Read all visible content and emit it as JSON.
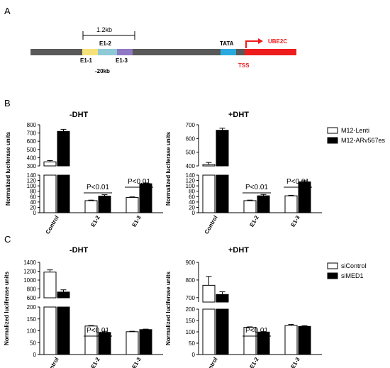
{
  "panel_labels": [
    "A",
    "B",
    "C"
  ],
  "schematic": {
    "scale_label": "1.2kb",
    "enhancers": [
      "E1-1",
      "E1-2",
      "E1-3"
    ],
    "distance_label": "-20kb",
    "tata_label": "TATA",
    "gene_label": "UBE2C",
    "tss_label": "TSS",
    "colors": {
      "line": "#595959",
      "e1_1": "#f6e27a",
      "e1_2": "#8ec9d6",
      "e1_3": "#8e79c4",
      "tata": "#29a9e0",
      "gene": "#ee1c1c"
    }
  },
  "chart_data": [
    {
      "type": "bar",
      "panel": "B",
      "title": "-DHT",
      "ylabel": "Normalized luciferase units",
      "categories": [
        "Control",
        "E1-2",
        "E1-3"
      ],
      "series": [
        {
          "name": "M12-Lenti",
          "values": [
            350,
            45,
            57
          ],
          "errors": [
            15,
            2,
            2
          ]
        },
        {
          "name": "M12-ARv567es",
          "values": [
            720,
            62,
            108
          ],
          "errors": [
            25,
            5,
            3
          ]
        }
      ],
      "y_break": {
        "lower": [
          0,
          140
        ],
        "upper": [
          300,
          800
        ]
      },
      "lower_ticks": [
        0,
        20,
        40,
        60,
        80,
        100,
        120,
        140
      ],
      "upper_ticks": [
        300,
        400,
        500,
        600,
        700,
        800
      ],
      "annotations": [
        {
          "text": "P<0.01",
          "category": "E1-2"
        },
        {
          "text": "P<0.01",
          "category": "E1-3"
        }
      ]
    },
    {
      "type": "bar",
      "panel": "B",
      "title": "+DHT",
      "ylabel": "Normalized luciferase units",
      "categories": [
        "Control",
        "E1-2",
        "E1-3"
      ],
      "series": [
        {
          "name": "M12-Lenti",
          "values": [
            410,
            45,
            63
          ],
          "errors": [
            15,
            2,
            2
          ]
        },
        {
          "name": "M12-ARv567es",
          "values": [
            660,
            63,
            115
          ],
          "errors": [
            15,
            5,
            4
          ]
        }
      ],
      "y_break": {
        "lower": [
          0,
          140
        ],
        "upper": [
          400,
          700
        ]
      },
      "lower_ticks": [
        0,
        20,
        40,
        60,
        80,
        100,
        120,
        140
      ],
      "upper_ticks": [
        400,
        500,
        600,
        700
      ],
      "annotations": [
        {
          "text": "P<0.01",
          "category": "E1-2"
        },
        {
          "text": "P<0.01",
          "category": "E1-3"
        }
      ]
    },
    {
      "type": "bar",
      "panel": "C",
      "title": "-DHT",
      "ylabel": "Normalized luciferase units",
      "categories": [
        "Control",
        "E1-2",
        "E1-3"
      ],
      "series": [
        {
          "name": "siControl",
          "values": [
            1180,
            120,
            96
          ],
          "errors": [
            50,
            2,
            2
          ]
        },
        {
          "name": "siMED1",
          "values": [
            730,
            93,
            105
          ],
          "errors": [
            50,
            5,
            2
          ]
        }
      ],
      "y_break": {
        "lower": [
          0,
          200
        ],
        "upper": [
          600,
          1400
        ]
      },
      "lower_ticks": [
        0,
        50,
        100,
        150,
        200
      ],
      "upper_ticks": [
        600,
        800,
        1000,
        1200,
        1400
      ],
      "annotations": [
        {
          "text": "P<0.01",
          "category": "E1-2"
        }
      ]
    },
    {
      "type": "bar",
      "panel": "C",
      "title": "+DHT",
      "ylabel": "Normalized luciferase units",
      "categories": [
        "Control",
        "E1-2",
        "E1-3"
      ],
      "series": [
        {
          "name": "siControl",
          "values": [
            770,
            120,
            128
          ],
          "errors": [
            50,
            2,
            5
          ]
        },
        {
          "name": "siMED1",
          "values": [
            718,
            99,
            124
          ],
          "errors": [
            15,
            2,
            3
          ]
        }
      ],
      "y_break": {
        "lower": [
          0,
          200
        ],
        "upper": [
          675,
          900
        ]
      },
      "lower_ticks": [
        0,
        50,
        100,
        150,
        200
      ],
      "upper_ticks": [
        700,
        800,
        900
      ],
      "annotations": [
        {
          "text": "P<0.01",
          "category": "E1-2"
        }
      ]
    }
  ],
  "legends": [
    {
      "panel": "B",
      "entries": [
        {
          "label": "M12-Lenti",
          "color": "#ffffff"
        },
        {
          "label": "M12-ARv567es",
          "color": "#000000"
        }
      ]
    },
    {
      "panel": "C",
      "entries": [
        {
          "label": "siControl",
          "color": "#ffffff"
        },
        {
          "label": "siMED1",
          "color": "#000000"
        }
      ]
    }
  ]
}
